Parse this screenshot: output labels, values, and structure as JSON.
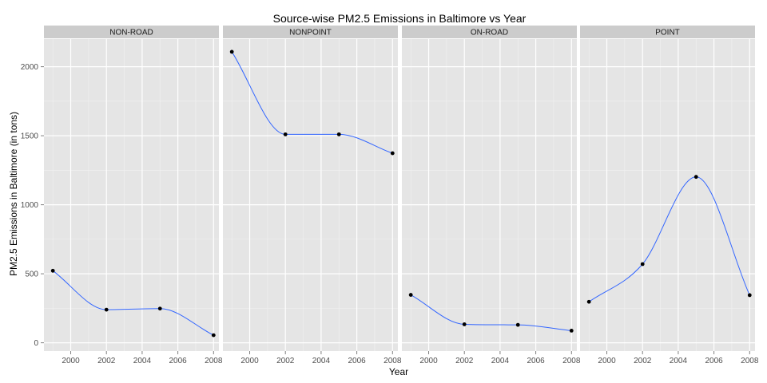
{
  "chart_data": {
    "type": "line",
    "title": "Source-wise PM2.5 Emissions in Baltimore vs Year",
    "xlabel": "Year",
    "ylabel": "PM2.5 Emissions in Baltimore (in tons)",
    "x": [
      1999,
      2002,
      2005,
      2008
    ],
    "xticks": [
      2000,
      2002,
      2004,
      2006,
      2008
    ],
    "xtick_labels": [
      "2000",
      "2002",
      "2004",
      "2006",
      "2008"
    ],
    "yticks": [
      0,
      500,
      1000,
      1500,
      2000
    ],
    "ytick_labels": [
      "0",
      "500",
      "1000",
      "1500",
      "2000"
    ],
    "xlim": [
      1998.5,
      2008.3
    ],
    "ylim": [
      -60,
      2200
    ],
    "grid": true,
    "facets": [
      {
        "label": "NON-ROAD",
        "values": [
          522,
          240,
          248,
          55
        ]
      },
      {
        "label": "NONPOINT",
        "values": [
          2108,
          1510,
          1510,
          1373
        ]
      },
      {
        "label": "ON-ROAD",
        "values": [
          347,
          134,
          130,
          88
        ]
      },
      {
        "label": "POINT",
        "values": [
          297,
          570,
          1202,
          345
        ]
      }
    ],
    "colors": {
      "panel_bg": "#e5e5e5",
      "strip_bg": "#cccccc",
      "grid_major": "#ffffff",
      "grid_minor": "#f2f2f2",
      "line": "#3366ff",
      "point": "#000000"
    }
  }
}
